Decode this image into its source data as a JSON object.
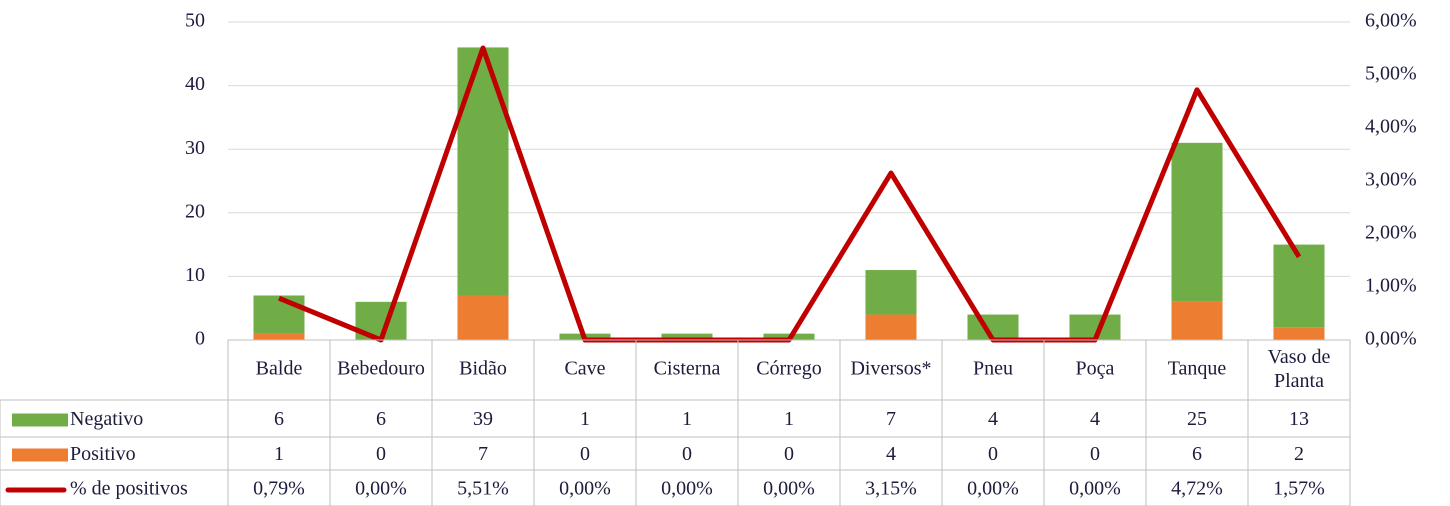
{
  "chart_data": {
    "type": "bar",
    "categories": [
      "Balde",
      "Bebedouro",
      "Bidão",
      "Cave",
      "Cisterna",
      "Córrego",
      "Diversos*",
      "Pneu",
      "Poça",
      "Tanque",
      "Vaso de Planta"
    ],
    "stacked": true,
    "series": [
      {
        "name": "Negativo",
        "color": "#70AD47",
        "values": [
          6,
          6,
          39,
          1,
          1,
          1,
          7,
          4,
          4,
          25,
          13
        ]
      },
      {
        "name": "Positivo",
        "color": "#ED7D31",
        "values": [
          1,
          0,
          7,
          0,
          0,
          0,
          4,
          0,
          0,
          6,
          2
        ]
      },
      {
        "name": "% de positivos",
        "color": "#C00000",
        "type": "line",
        "axis": "y2",
        "values": [
          0.79,
          0,
          5.51,
          0,
          0,
          0,
          3.15,
          0,
          0,
          4.72,
          1.57
        ],
        "value_labels": [
          "0,79%",
          "0,00%",
          "5,51%",
          "0,00%",
          "0,00%",
          "0,00%",
          "3,15%",
          "0,00%",
          "0,00%",
          "4,72%",
          "1,57%"
        ]
      }
    ],
    "ylim": [
      0,
      50
    ],
    "yticks": [
      0,
      10,
      20,
      30,
      40,
      50
    ],
    "y2lim": [
      0,
      6
    ],
    "y2ticks": [
      {
        "value": 0,
        "label": "0,00%"
      },
      {
        "value": 1,
        "label": "1,00%"
      },
      {
        "value": 2,
        "label": "2,00%"
      },
      {
        "value": 3,
        "label": "3,00%"
      },
      {
        "value": 4,
        "label": "4,00%"
      },
      {
        "value": 5,
        "label": "5,00%"
      },
      {
        "value": 6,
        "label": "6,00%"
      }
    ],
    "grid": true,
    "data_table": true
  }
}
